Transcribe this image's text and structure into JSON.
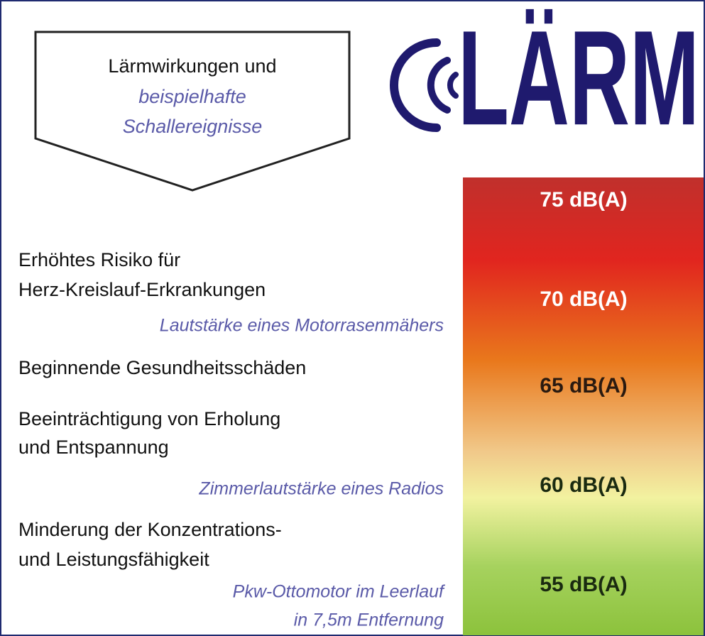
{
  "header": {
    "box": [
      "Lärmwirkungen und",
      "beispielhafte",
      "Schallereignisse"
    ],
    "logo": "LÄRM"
  },
  "scale": [
    "75 dB(A)",
    "70 dB(A)",
    "65 dB(A)",
    "60 dB(A)",
    "55 dB(A)"
  ],
  "effects": [
    {
      "lines": [
        "Erhöhtes Risiko für",
        "Herz-Kreislauf-Erkrankungen"
      ],
      "examples": [
        "Lautstärke eines Motorrasenmähers"
      ]
    },
    {
      "lines": [
        "Beginnende Gesundheitsschäden"
      ]
    },
    {
      "lines": [
        "Beeinträchtigung von Erholung",
        "und Entspannung"
      ],
      "examples": [
        "Zimmerlautstärke eines Radios"
      ]
    },
    {
      "lines": [
        "Minderung der Konzentrations-",
        "und Leistungsfähigkeit"
      ],
      "examples": [
        "Pkw-Ottomotor im Leerlauf",
        "in 7,5m Entfernung"
      ]
    }
  ]
}
